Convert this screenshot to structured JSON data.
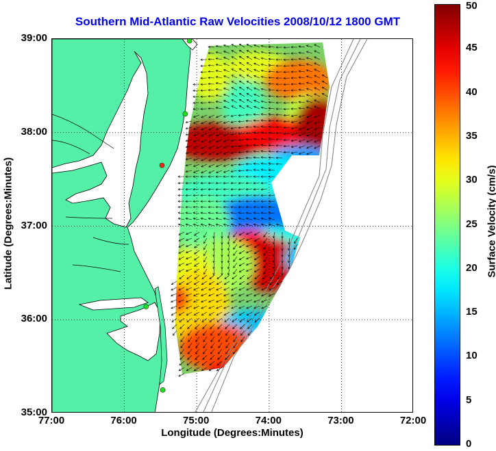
{
  "title": "Southern Mid-Atlantic Raw Velocities 2008/10/12 1800 GMT",
  "xlabel": "Longitude (Degrees:Minutes)",
  "ylabel": "Latitude (Degrees:Minutes)",
  "lon_ticks": [
    "77:00",
    "76:00",
    "75:00",
    "74:00",
    "73:00",
    "72:00"
  ],
  "lat_ticks": [
    "39:00",
    "38:00",
    "37:00",
    "36:00",
    "35:00"
  ],
  "colorbar": {
    "label": "Surface Velocity (cm/s)",
    "ticks": [
      "50",
      "45",
      "40",
      "35",
      "30",
      "25",
      "20",
      "15",
      "10",
      "5",
      "0"
    ],
    "range": [
      0,
      50
    ],
    "colormap": "jet"
  },
  "colors": {
    "land": "#55f0a8",
    "water": "#ffffff",
    "title": "#0000ee",
    "station": "#22dd22",
    "station_alt": "#ff2222"
  },
  "chart_data": {
    "type": "quiver map",
    "xlim": [
      -77,
      -72
    ],
    "ylim": [
      35,
      39
    ],
    "grid": "dotted",
    "stations": [
      {
        "lon": -75.1,
        "lat": 38.98,
        "color": "green"
      },
      {
        "lon": -75.16,
        "lat": 38.2,
        "color": "green"
      },
      {
        "lon": -75.48,
        "lat": 37.65,
        "color": "red"
      },
      {
        "lon": -75.7,
        "lat": 36.14,
        "color": "green"
      },
      {
        "lon": -75.47,
        "lat": 35.25,
        "color": "green"
      }
    ],
    "hotspots": [
      {
        "lon": -74.8,
        "lat": 38.1,
        "speed": 45
      },
      {
        "lon": -73.5,
        "lat": 38.15,
        "speed": 48
      },
      {
        "lon": -74.0,
        "lat": 36.65,
        "speed": 45
      },
      {
        "lon": -75.0,
        "lat": 35.8,
        "speed": 40
      },
      {
        "lon": -74.5,
        "lat": 38.8,
        "speed": 38
      }
    ]
  }
}
